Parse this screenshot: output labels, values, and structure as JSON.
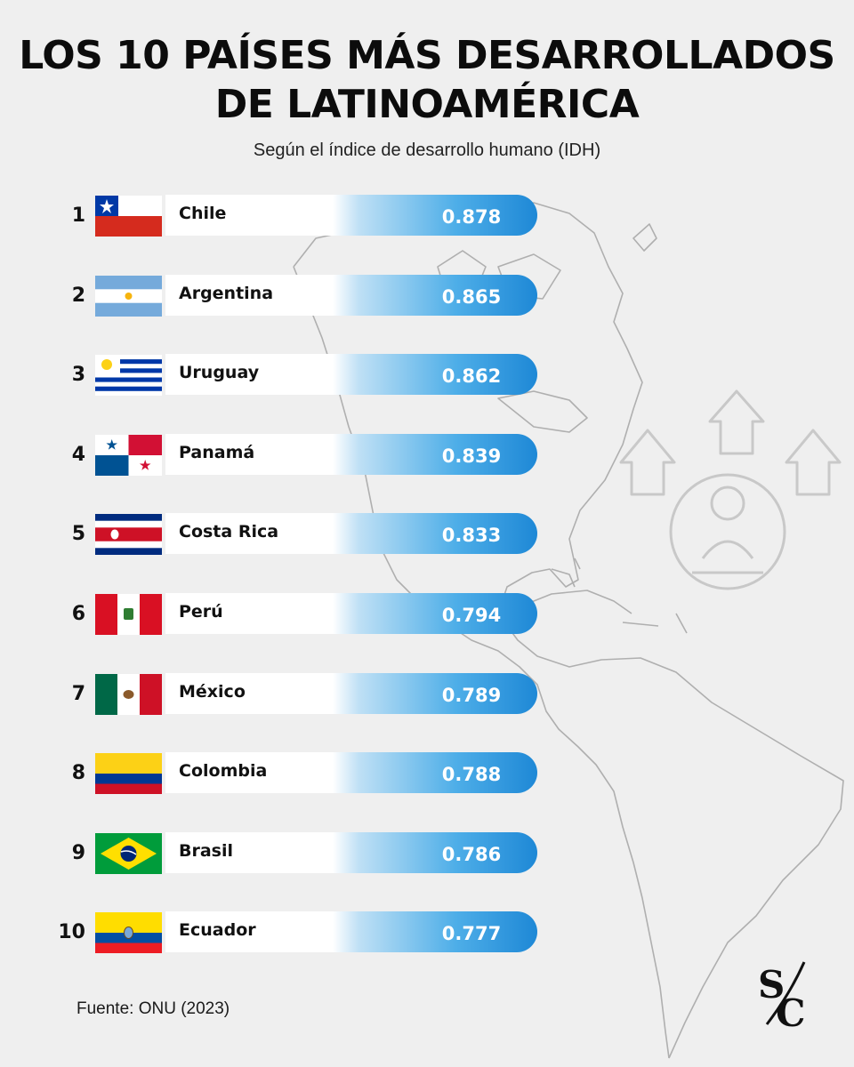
{
  "header": {
    "title_line1": "LOS 10 PAÍSES MÁS DESARROLLADOS",
    "title_line2": "DE LATINOAMÉRICA",
    "subtitle": "Según el índice de desarrollo humano (IDH)"
  },
  "colors": {
    "accent_start": "#bfe0f5",
    "accent_end": "#1e88d6",
    "background": "#efefef"
  },
  "chart_data": {
    "type": "bar",
    "title": "LOS 10 PAÍSES MÁS DESARROLLADOS DE LATINOAMÉRICA",
    "subtitle": "Según el índice de desarrollo humano (IDH)",
    "categories": [
      "Chile",
      "Argentina",
      "Uruguay",
      "Panamá",
      "Costa Rica",
      "Perú",
      "México",
      "Colombia",
      "Brasil",
      "Ecuador"
    ],
    "values": [
      0.878,
      0.865,
      0.862,
      0.839,
      0.833,
      0.794,
      0.789,
      0.788,
      0.786,
      0.777
    ],
    "ranks": [
      "1",
      "2",
      "3",
      "4",
      "5",
      "6",
      "7",
      "8",
      "9",
      "10"
    ],
    "value_labels": [
      "0.878",
      "0.865",
      "0.862",
      "0.839",
      "0.833",
      "0.794",
      "0.789",
      "0.788",
      "0.786",
      "0.777"
    ],
    "flag_icons": [
      "chile-flag-icon",
      "argentina-flag-icon",
      "uruguay-flag-icon",
      "panama-flag-icon",
      "costa-rica-flag-icon",
      "peru-flag-icon",
      "mexico-flag-icon",
      "colombia-flag-icon",
      "brazil-flag-icon",
      "ecuador-flag-icon"
    ],
    "xlabel": "",
    "ylabel": ""
  },
  "footer": {
    "source": "Fuente: ONU (2023)",
    "logo_text": "SC"
  }
}
